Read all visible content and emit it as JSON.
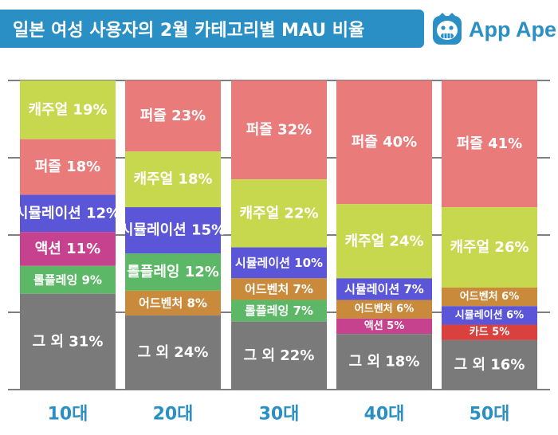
{
  "header": {
    "title": "일본 여성 사용자의 2월 카테고리별 MAU 비율",
    "logo_text": "App Ape",
    "logo_icon": "monkey-face-icon"
  },
  "colors": {
    "title_bg": "#2a8fc4",
    "axis_label": "#2a8fc4",
    "grid": "#555555",
    "categories": {
      "캐주얼": "#c8d84e",
      "퍼즐": "#e97b7b",
      "시뮬레이션": "#5b56d8",
      "액션": "#c6428e",
      "롤플레잉": "#5cb866",
      "어드벤처": "#c98a3c",
      "카드": "#d9413e",
      "그 외": "#7a7a7a"
    }
  },
  "chart_data": {
    "type": "bar",
    "stacked": true,
    "normalized": true,
    "title": "일본 여성 사용자의 2월 카테고리별 MAU 비율",
    "xlabel": "",
    "ylabel": "",
    "ylim": [
      0,
      100
    ],
    "grid": true,
    "legend": "none",
    "categories": [
      "10대",
      "20대",
      "30대",
      "40대",
      "50대"
    ],
    "stacks": [
      {
        "category": "10대",
        "segments": [
          {
            "name": "캐주얼",
            "value": 19,
            "label": "캐주얼 19%"
          },
          {
            "name": "퍼즐",
            "value": 18,
            "label": "퍼즐 18%"
          },
          {
            "name": "시뮬레이션",
            "value": 12,
            "label": "시뮬레이션 12%"
          },
          {
            "name": "액션",
            "value": 11,
            "label": "액션 11%"
          },
          {
            "name": "롤플레잉",
            "value": 9,
            "label": "롤플레잉 9%"
          },
          {
            "name": "그 외",
            "value": 31,
            "label": "그 외 31%"
          }
        ]
      },
      {
        "category": "20대",
        "segments": [
          {
            "name": "퍼즐",
            "value": 23,
            "label": "퍼즐 23%"
          },
          {
            "name": "캐주얼",
            "value": 18,
            "label": "캐주얼 18%"
          },
          {
            "name": "시뮬레이션",
            "value": 15,
            "label": "시뮬레이션 15%"
          },
          {
            "name": "롤플레잉",
            "value": 12,
            "label": "롤플레잉 12%"
          },
          {
            "name": "어드벤처",
            "value": 8,
            "label": "어드벤처 8%"
          },
          {
            "name": "그 외",
            "value": 24,
            "label": "그 외 24%"
          }
        ]
      },
      {
        "category": "30대",
        "segments": [
          {
            "name": "퍼즐",
            "value": 32,
            "label": "퍼즐 32%"
          },
          {
            "name": "캐주얼",
            "value": 22,
            "label": "캐주얼 22%"
          },
          {
            "name": "시뮬레이션",
            "value": 10,
            "label": "시뮬레이션 10%"
          },
          {
            "name": "어드벤처",
            "value": 7,
            "label": "어드벤처 7%"
          },
          {
            "name": "롤플레잉",
            "value": 7,
            "label": "롤플레잉 7%"
          },
          {
            "name": "그 외",
            "value": 22,
            "label": "그 외 22%"
          }
        ]
      },
      {
        "category": "40대",
        "segments": [
          {
            "name": "퍼즐",
            "value": 40,
            "label": "퍼즐 40%"
          },
          {
            "name": "캐주얼",
            "value": 24,
            "label": "캐주얼 24%"
          },
          {
            "name": "시뮬레이션",
            "value": 7,
            "label": "시뮬레이션 7%"
          },
          {
            "name": "어드벤처",
            "value": 6,
            "label": "어드벤처 6%"
          },
          {
            "name": "액션",
            "value": 5,
            "label": "액션 5%"
          },
          {
            "name": "그 외",
            "value": 18,
            "label": "그 외 18%"
          }
        ]
      },
      {
        "category": "50대",
        "segments": [
          {
            "name": "퍼즐",
            "value": 41,
            "label": "퍼즐 41%"
          },
          {
            "name": "캐주얼",
            "value": 26,
            "label": "캐주얼 26%"
          },
          {
            "name": "어드벤처",
            "value": 6,
            "label": "어드벤처 6%"
          },
          {
            "name": "시뮬레이션",
            "value": 6,
            "label": "시뮬레이션 6%"
          },
          {
            "name": "카드",
            "value": 5,
            "label": "카드 5%"
          },
          {
            "name": "그 외",
            "value": 16,
            "label": "그 외 16%"
          }
        ]
      }
    ]
  }
}
